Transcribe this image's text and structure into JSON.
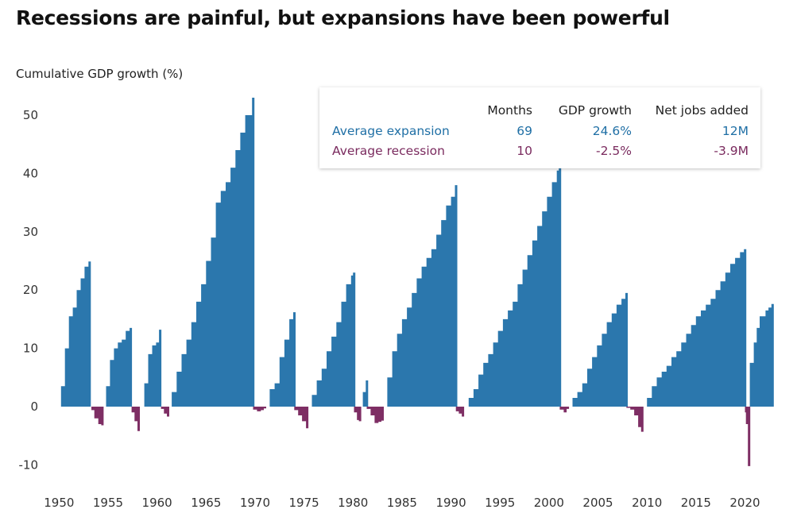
{
  "title": "Recessions are painful, but expansions have been powerful",
  "ylabel": "Cumulative GDP growth (%)",
  "colors": {
    "expansion": "#2b77ad",
    "recession": "#7e2e64",
    "highlight": "#c5dbea"
  },
  "table": {
    "headers": [
      "Months",
      "GDP growth",
      "Net jobs added"
    ],
    "rows": [
      {
        "label": "Average expansion",
        "months": "69",
        "gdp": "24.6%",
        "jobs": "12M"
      },
      {
        "label": "Average recession",
        "months": "10",
        "gdp": "-2.5%",
        "jobs": "-3.9M"
      }
    ]
  },
  "chart_data": {
    "type": "area",
    "xlim": [
      1949.0,
      2022.8
    ],
    "ylim": [
      -10,
      54
    ],
    "xticks": [
      1950,
      1955,
      1960,
      1965,
      1970,
      1975,
      1980,
      1985,
      1990,
      1995,
      2000,
      2005,
      2010,
      2015,
      2020
    ],
    "yticks": [
      -10,
      0,
      10,
      20,
      30,
      40,
      50
    ],
    "grid": false,
    "series": [
      {
        "kind": "expansion",
        "x": [
          1949.8,
          1950.2,
          1950.6,
          1951.0,
          1951.4,
          1951.8,
          1952.2,
          1952.6,
          1953.0
        ],
        "y": [
          0,
          3.5,
          10,
          15.5,
          17,
          20,
          22,
          24,
          24.9
        ]
      },
      {
        "kind": "recession",
        "x": [
          1953.3,
          1953.6,
          1954.0,
          1954.3
        ],
        "y": [
          -0.6,
          -2.0,
          -3.0,
          -3.2
        ]
      },
      {
        "kind": "expansion",
        "x": [
          1954.4,
          1954.8,
          1955.2,
          1955.6,
          1956.0,
          1956.4,
          1956.8,
          1957.2
        ],
        "y": [
          0,
          3.5,
          8,
          10,
          11,
          11.5,
          13,
          13.5
        ]
      },
      {
        "kind": "recession",
        "x": [
          1957.4,
          1957.7,
          1958.0
        ],
        "y": [
          -1.0,
          -2.5,
          -4.2
        ]
      },
      {
        "kind": "expansion",
        "x": [
          1958.3,
          1958.7,
          1959.1,
          1959.5,
          1959.9,
          1960.2
        ],
        "y": [
          0,
          4,
          9,
          10.5,
          11,
          13.2
        ]
      },
      {
        "kind": "recession",
        "x": [
          1960.4,
          1960.7,
          1961.0
        ],
        "y": [
          -0.4,
          -1.2,
          -1.7
        ]
      },
      {
        "kind": "expansion",
        "x": [
          1961.0,
          1961.5,
          1962.0,
          1962.5,
          1963.0,
          1963.5,
          1964.0,
          1964.5,
          1965.0,
          1965.5,
          1966.0,
          1966.5,
          1967.0,
          1967.5,
          1968.0,
          1968.5,
          1969.0,
          1969.7
        ],
        "y": [
          0,
          2.5,
          6,
          9,
          11.5,
          14.5,
          18,
          21,
          25,
          29,
          35,
          37,
          38.5,
          41,
          44,
          47,
          50,
          53
        ]
      },
      {
        "kind": "recession",
        "x": [
          1969.8,
          1970.2,
          1970.6,
          1970.9
        ],
        "y": [
          -0.5,
          -0.8,
          -0.6,
          -0.3
        ]
      },
      {
        "kind": "expansion",
        "x": [
          1971.0,
          1971.5,
          1972.0,
          1972.5,
          1973.0,
          1973.5,
          1973.9
        ],
        "y": [
          0,
          3,
          4,
          8.5,
          11.5,
          15,
          16.2
        ]
      },
      {
        "kind": "recession",
        "x": [
          1974.0,
          1974.4,
          1974.8,
          1975.2
        ],
        "y": [
          -0.6,
          -1.5,
          -2.5,
          -3.7
        ]
      },
      {
        "kind": "expansion",
        "x": [
          1975.3,
          1975.8,
          1976.3,
          1976.8,
          1977.3,
          1977.8,
          1978.3,
          1978.8,
          1979.3,
          1979.8,
          1980.0
        ],
        "y": [
          0,
          2,
          4.5,
          6.5,
          9.5,
          12,
          14.5,
          18,
          21,
          22.5,
          23
        ]
      },
      {
        "kind": "recession",
        "x": [
          1980.1,
          1980.4,
          1980.6
        ],
        "y": [
          -1.0,
          -2.3,
          -2.5
        ]
      },
      {
        "kind": "expansion",
        "x": [
          1980.7,
          1981.0,
          1981.3
        ],
        "y": [
          0,
          2.5,
          4.5
        ]
      },
      {
        "kind": "recession",
        "x": [
          1981.4,
          1981.8,
          1982.2,
          1982.6,
          1982.9
        ],
        "y": [
          -0.4,
          -1.5,
          -2.8,
          -2.6,
          -2.4
        ]
      },
      {
        "kind": "expansion",
        "x": [
          1983.0,
          1983.5,
          1984.0,
          1984.5,
          1985.0,
          1985.5,
          1986.0,
          1986.5,
          1987.0,
          1987.5,
          1988.0,
          1988.5,
          1989.0,
          1989.5,
          1990.0,
          1990.4
        ],
        "y": [
          0,
          5,
          9.5,
          12.5,
          15,
          17,
          19.5,
          22,
          24,
          25.5,
          27,
          29.5,
          32,
          34.5,
          36,
          38
        ]
      },
      {
        "kind": "recession",
        "x": [
          1990.5,
          1990.8,
          1991.1
        ],
        "y": [
          -0.8,
          -1.2,
          -1.7
        ]
      },
      {
        "kind": "expansion",
        "x": [
          1991.3,
          1991.8,
          1992.3,
          1992.8,
          1993.3,
          1993.8,
          1994.3,
          1994.8,
          1995.3,
          1995.8,
          1996.3,
          1996.8,
          1997.3,
          1997.8,
          1998.3,
          1998.8,
          1999.3,
          1999.8,
          2000.3,
          2000.8,
          2001.0
        ],
        "y": [
          0,
          1.5,
          3,
          5.5,
          7.5,
          9,
          11,
          13,
          15,
          16.5,
          18,
          21,
          23.5,
          26,
          28.5,
          31,
          33.5,
          36,
          38.5,
          40.5,
          41
        ]
      },
      {
        "kind": "recession",
        "x": [
          2001.1,
          2001.5,
          2001.8
        ],
        "y": [
          -0.5,
          -1.0,
          -0.4
        ]
      },
      {
        "kind": "expansion",
        "x": [
          2001.9,
          2002.4,
          2002.9,
          2003.4,
          2003.9,
          2004.4,
          2004.9,
          2005.4,
          2005.9,
          2006.4,
          2006.9,
          2007.4,
          2007.8
        ],
        "y": [
          0,
          1.5,
          2.5,
          4,
          6.5,
          8.5,
          10.5,
          12.5,
          14.5,
          16,
          17.5,
          18.5,
          19.5
        ]
      },
      {
        "kind": "recession",
        "x": [
          2007.9,
          2008.3,
          2008.7,
          2009.1,
          2009.4
        ],
        "y": [
          -0.2,
          -0.5,
          -1.5,
          -3.5,
          -4.3
        ]
      },
      {
        "kind": "expansion",
        "x": [
          2009.5,
          2010.0,
          2010.5,
          2011.0,
          2011.5,
          2012.0,
          2012.5,
          2013.0,
          2013.5,
          2014.0,
          2014.5,
          2015.0,
          2015.5,
          2016.0,
          2016.5,
          2017.0,
          2017.5,
          2018.0,
          2018.5,
          2019.0,
          2019.5,
          2019.9
        ],
        "y": [
          0,
          1.5,
          3.5,
          5,
          6,
          7,
          8.5,
          9.5,
          11,
          12.5,
          14,
          15.5,
          16.5,
          17.5,
          18.5,
          20,
          21.5,
          23,
          24.5,
          25.5,
          26.5,
          27
        ]
      },
      {
        "kind": "recession",
        "x": [
          2020.0,
          2020.1,
          2020.3
        ],
        "y": [
          -1.0,
          -3.0,
          -10.2
        ]
      },
      {
        "kind": "expansion",
        "x": [
          2020.5,
          2020.9,
          2021.2,
          2021.5,
          2021.8,
          2022.1,
          2022.4,
          2022.7
        ],
        "y": [
          7.5,
          11,
          13.5,
          15.5,
          15.5,
          16.5,
          17,
          17.6
        ]
      }
    ]
  }
}
